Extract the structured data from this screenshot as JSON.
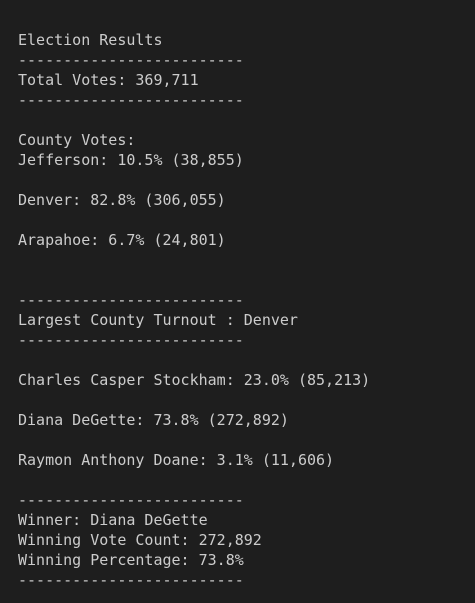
{
  "report": {
    "title": "Election Results",
    "separator": "-------------------------",
    "total_votes": "Total Votes: 369,711",
    "county_header": "County Votes:",
    "counties": [
      "Jefferson: 10.5% (38,855)",
      "Denver: 82.8% (306,055)",
      "Arapahoe: 6.7% (24,801)"
    ],
    "largest_county": "Largest County Turnout : Denver",
    "candidates": [
      "Charles Casper Stockham: 23.0% (85,213)",
      "Diana DeGette: 73.8% (272,892)",
      "Raymon Anthony Doane: 3.1% (11,606)"
    ],
    "winner": "Winner: Diana DeGette",
    "winning_vote_count": "Winning Vote Count: 272,892",
    "winning_percentage": "Winning Percentage: 73.8%"
  }
}
